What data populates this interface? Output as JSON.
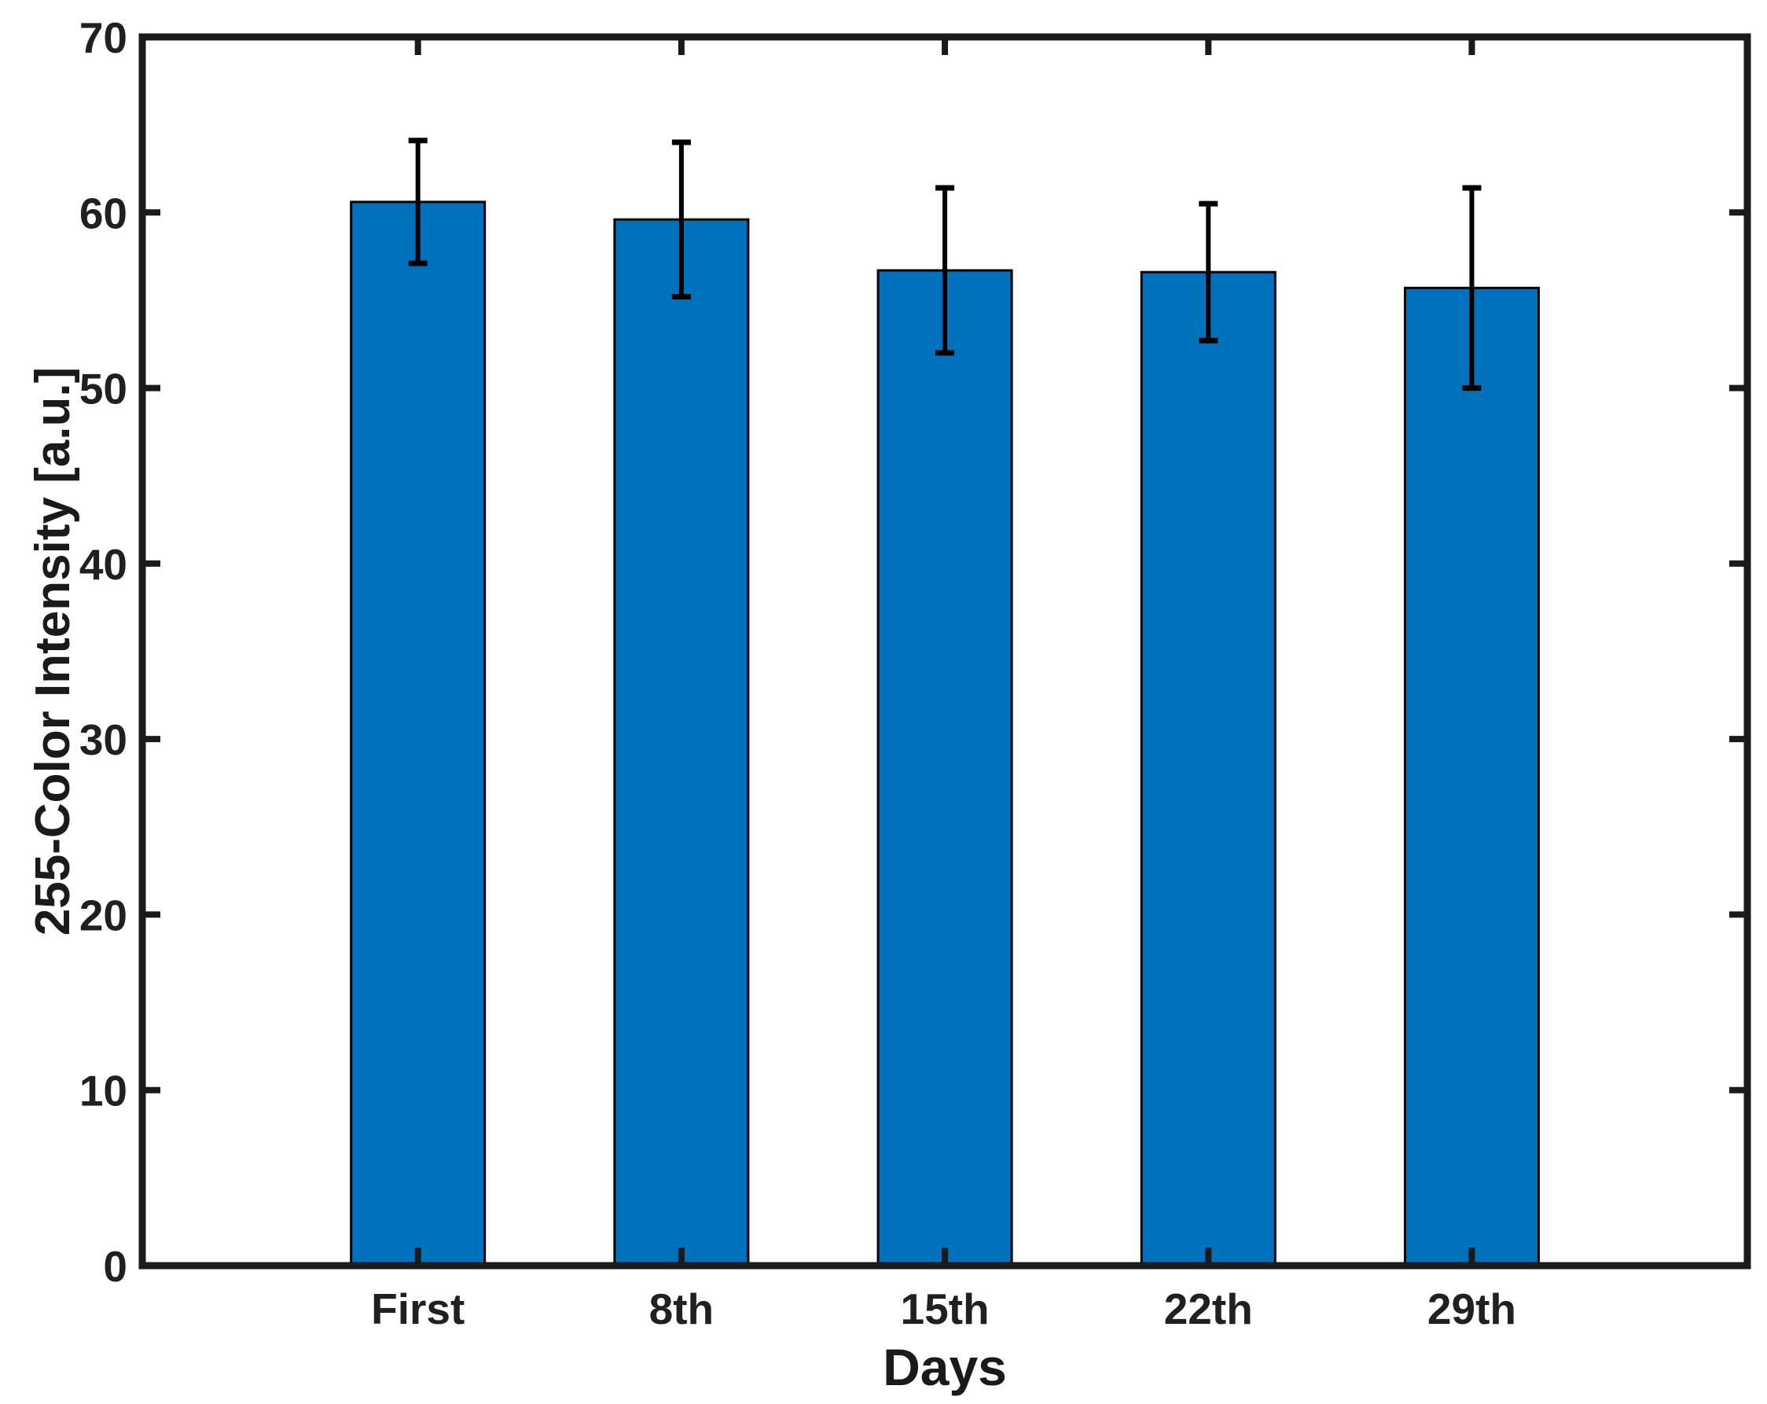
{
  "chart_data": {
    "type": "bar",
    "title": "",
    "categories": [
      "First",
      "8th",
      "15th",
      "22th",
      "29th"
    ],
    "values": [
      60.6,
      59.6,
      56.7,
      56.6,
      55.7
    ],
    "error_bars": [
      3.5,
      4.4,
      4.7,
      3.9,
      5.7
    ],
    "xlabel": "Days",
    "ylabel": "255-Color Intensity [a.u.]",
    "ylim": [
      0,
      70
    ],
    "yticks": [
      0,
      10,
      20,
      30,
      40,
      50,
      60,
      70
    ],
    "grid": false,
    "legend": null,
    "bar_color": "#0072BD",
    "bar_edge_color": "#000000",
    "error_color": "#000000",
    "axis_color": "#1a1a1a",
    "background_color": "#ffffff"
  }
}
